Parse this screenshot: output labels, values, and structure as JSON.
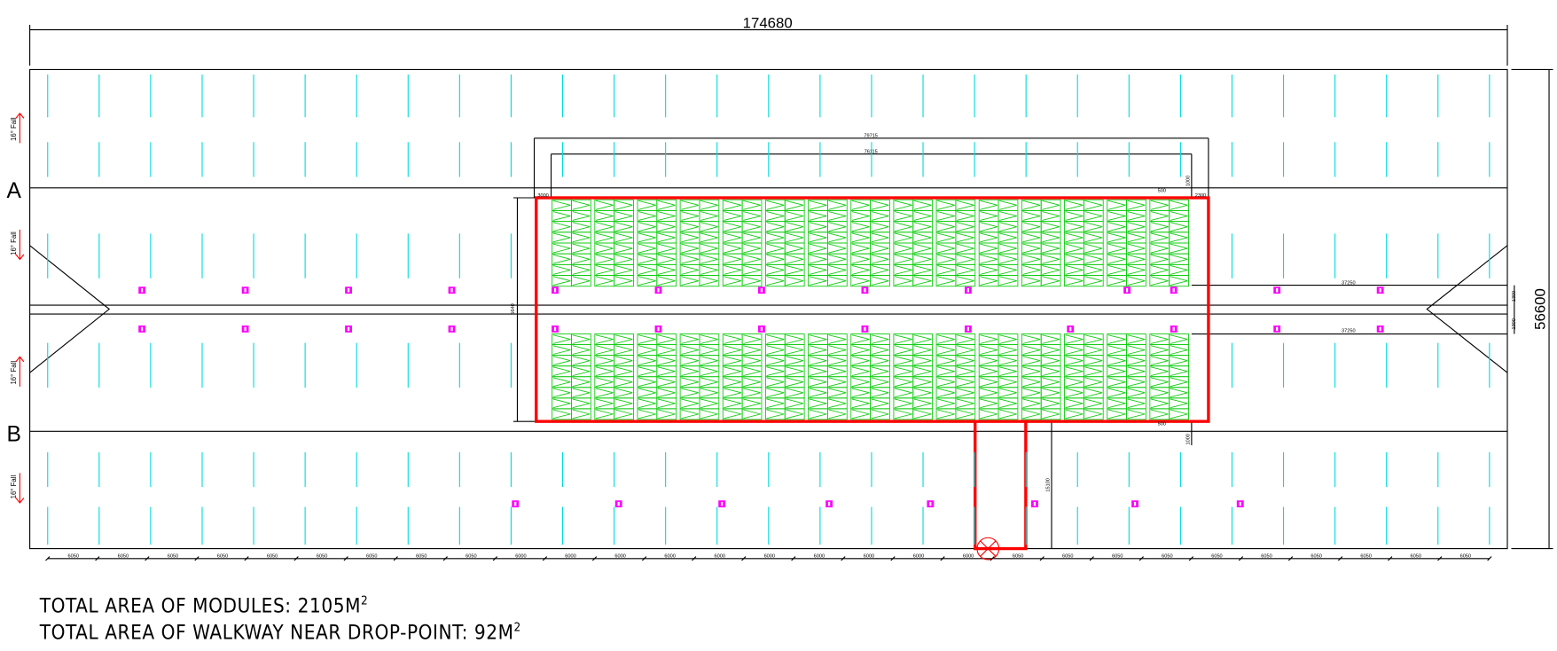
{
  "overall_width": "174680",
  "overall_height": "56600",
  "grid_labels": [
    "A",
    "B"
  ],
  "fall_labels": [
    "16° Fall",
    "16° Fall",
    "16° Fall",
    "16° Fall"
  ],
  "dims": {
    "outer_array": "79715",
    "inner_array": "76115",
    "left_gap": "3000",
    "right_gap": "2300",
    "module_gap": "500",
    "top_gap": "1000",
    "upper_offset": "37250",
    "lower_offset": "37250",
    "upper_spacing": "1300",
    "lower_spacing": "1300",
    "array_height": "5640",
    "walkway_length": "15100",
    "bottom_gap": "1000",
    "walkway_gap": "500"
  },
  "bottom_dims": [
    "6050",
    "6050",
    "6050",
    "6050",
    "6050",
    "6050",
    "6050",
    "6050",
    "6050",
    "6000",
    "6000",
    "6000",
    "6000",
    "6000",
    "6000",
    "6000",
    "6000",
    "6000",
    "6000",
    "6050",
    "6050",
    "6050",
    "6050",
    "6050",
    "6050",
    "6050",
    "6050",
    "6050",
    "6050"
  ],
  "notes": [
    {
      "text": "TOTAL AREA OF MODULES: 2105M",
      "sup": "2"
    },
    {
      "text": "TOTAL AREA OF WALKWAY NEAR DROP-POINT: 92M",
      "sup": "2"
    }
  ]
}
